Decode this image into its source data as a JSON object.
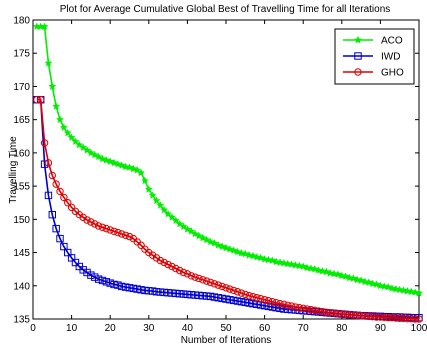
{
  "chart_data": {
    "type": "line",
    "title": "Plot for Average Cumulative Global Best of Travelling Time for all Iterations",
    "xlabel": "Number of Iterations",
    "ylabel": "Travelling Time",
    "xlim": [
      0,
      100
    ],
    "ylim": [
      135,
      180
    ],
    "xticks": [
      0,
      10,
      20,
      30,
      40,
      50,
      60,
      70,
      80,
      90,
      100
    ],
    "yticks": [
      135,
      140,
      145,
      150,
      155,
      160,
      165,
      170,
      175,
      180
    ],
    "grid": false,
    "legend_position": "top-right",
    "x": [
      1,
      2,
      3,
      4,
      5,
      6,
      7,
      8,
      9,
      10,
      11,
      12,
      13,
      14,
      15,
      16,
      17,
      18,
      19,
      20,
      21,
      22,
      23,
      24,
      25,
      26,
      27,
      28,
      29,
      30,
      31,
      32,
      33,
      34,
      35,
      36,
      37,
      38,
      39,
      40,
      41,
      42,
      43,
      44,
      45,
      46,
      47,
      48,
      49,
      50,
      51,
      52,
      53,
      54,
      55,
      56,
      57,
      58,
      59,
      60,
      61,
      62,
      63,
      64,
      65,
      66,
      67,
      68,
      69,
      70,
      71,
      72,
      73,
      74,
      75,
      76,
      77,
      78,
      79,
      80,
      81,
      82,
      83,
      84,
      85,
      86,
      87,
      88,
      89,
      90,
      91,
      92,
      93,
      94,
      95,
      96,
      97,
      98,
      99,
      100
    ],
    "series": [
      {
        "name": "ACO",
        "color": "#00ee00",
        "marker": "star",
        "values": [
          179.0,
          179.0,
          179.0,
          173.5,
          170.0,
          167.0,
          165.0,
          163.8,
          163.0,
          162.3,
          161.7,
          161.2,
          160.8,
          160.4,
          160.0,
          159.7,
          159.4,
          159.1,
          158.9,
          158.7,
          158.5,
          158.3,
          158.1,
          157.9,
          157.8,
          157.6,
          157.4,
          157.0,
          155.8,
          154.5,
          153.6,
          152.8,
          152.1,
          151.4,
          150.8,
          150.3,
          149.8,
          149.3,
          148.9,
          148.5,
          148.2,
          147.8,
          147.5,
          147.2,
          146.9,
          146.6,
          146.4,
          146.1,
          145.9,
          145.7,
          145.5,
          145.3,
          145.1,
          144.9,
          144.8,
          144.6,
          144.5,
          144.3,
          144.2,
          144.0,
          143.9,
          143.8,
          143.6,
          143.5,
          143.4,
          143.3,
          143.2,
          143.1,
          143.0,
          142.9,
          142.7,
          142.6,
          142.5,
          142.3,
          142.2,
          142.1,
          141.9,
          141.8,
          141.7,
          141.5,
          141.4,
          141.2,
          141.1,
          140.9,
          140.8,
          140.6,
          140.5,
          140.3,
          140.2,
          140.0,
          139.9,
          139.8,
          139.6,
          139.5,
          139.4,
          139.3,
          139.2,
          139.1,
          139.0,
          138.9
        ]
      },
      {
        "name": "IWD",
        "color": "#0000cc",
        "marker": "square",
        "values": [
          168.0,
          168.0,
          158.3,
          153.6,
          150.7,
          148.6,
          147.1,
          145.9,
          145.0,
          144.2,
          143.5,
          142.9,
          142.4,
          142.0,
          141.6,
          141.3,
          141.0,
          140.8,
          140.6,
          140.4,
          140.2,
          140.1,
          139.9,
          139.8,
          139.7,
          139.6,
          139.5,
          139.4,
          139.3,
          139.25,
          139.2,
          139.1,
          139.05,
          139.0,
          138.95,
          138.9,
          138.85,
          138.8,
          138.75,
          138.7,
          138.65,
          138.6,
          138.55,
          138.5,
          138.45,
          138.4,
          138.3,
          138.2,
          138.1,
          138.0,
          137.9,
          137.8,
          137.7,
          137.6,
          137.5,
          137.4,
          137.3,
          137.2,
          137.1,
          137.0,
          136.9,
          136.8,
          136.7,
          136.6,
          136.5,
          136.45,
          136.4,
          136.35,
          136.3,
          136.25,
          136.2,
          136.15,
          136.1,
          136.05,
          136.0,
          135.95,
          135.9,
          135.85,
          135.8,
          135.75,
          135.7,
          135.65,
          135.6,
          135.55,
          135.5,
          135.5,
          135.45,
          135.45,
          135.4,
          135.4,
          135.35,
          135.35,
          135.3,
          135.3,
          135.3,
          135.25,
          135.25,
          135.2,
          135.2,
          135.2
        ]
      },
      {
        "name": "GHO",
        "color": "#dd0000",
        "marker": "circle",
        "values": [
          168.0,
          168.0,
          161.5,
          158.5,
          156.6,
          155.3,
          154.2,
          153.3,
          152.5,
          151.8,
          151.2,
          150.7,
          150.3,
          149.9,
          149.6,
          149.3,
          149.0,
          148.8,
          148.6,
          148.4,
          148.2,
          148.0,
          147.8,
          147.6,
          147.4,
          147.1,
          146.6,
          146.1,
          145.5,
          145.0,
          144.6,
          144.2,
          143.8,
          143.5,
          143.2,
          142.9,
          142.6,
          142.3,
          142.0,
          141.8,
          141.5,
          141.3,
          141.1,
          140.9,
          140.7,
          140.5,
          140.3,
          140.1,
          139.9,
          139.7,
          139.5,
          139.3,
          139.1,
          138.9,
          138.7,
          138.5,
          138.35,
          138.2,
          138.05,
          137.9,
          137.75,
          137.6,
          137.45,
          137.3,
          137.2,
          137.05,
          136.95,
          136.8,
          136.7,
          136.6,
          136.5,
          136.4,
          136.3,
          136.2,
          136.1,
          136.0,
          135.95,
          135.9,
          135.8,
          135.75,
          135.7,
          135.65,
          135.6,
          135.55,
          135.5,
          135.45,
          135.4,
          135.35,
          135.3,
          135.3,
          135.25,
          135.2,
          135.2,
          135.15,
          135.1,
          135.1,
          135.05,
          135.05,
          135.0,
          135.0
        ]
      }
    ]
  }
}
